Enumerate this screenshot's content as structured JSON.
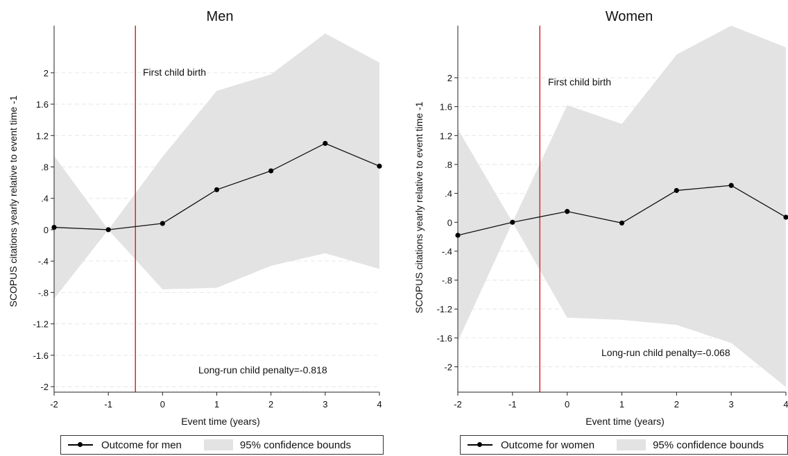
{
  "chart_data": [
    {
      "type": "line",
      "title": "Men",
      "xlabel": "Event time (years)",
      "ylabel": "SCOPUS citations yearly relative to event time -1",
      "x": [
        -2,
        -1,
        0,
        1,
        2,
        3,
        4
      ],
      "xticks": [
        "-2",
        "-1",
        "0",
        "1",
        "2",
        "3",
        "4"
      ],
      "yticks": [
        "2",
        "1.6",
        "1.2",
        ".8",
        ".4",
        "0",
        "-.4",
        "-.8",
        "-1.2",
        "-1.6",
        "-2"
      ],
      "ytick_values": [
        2,
        1.6,
        1.2,
        0.8,
        0.4,
        0,
        -0.4,
        -0.8,
        -1.2,
        -1.6,
        -2
      ],
      "xlim": [
        -2,
        4
      ],
      "ylim": [
        -2.07,
        2.6
      ],
      "series": [
        {
          "name": "Outcome for men",
          "values": [
            0.03,
            0.0,
            0.08,
            0.51,
            0.75,
            1.1,
            0.81
          ]
        }
      ],
      "ci_upper": [
        0.94,
        0.0,
        0.93,
        1.77,
        1.98,
        2.5,
        2.13
      ],
      "ci_lower": [
        -0.88,
        0.0,
        -0.76,
        -0.74,
        -0.46,
        -0.3,
        -0.5
      ],
      "ci_name": "95% confidence bounds",
      "event_line_x": -0.5,
      "event_label": "First child birth",
      "annotation": "Long-run child penalty=-0.818",
      "grid": true,
      "legend_position": "bottom"
    },
    {
      "type": "line",
      "title": "Women",
      "xlabel": "Event time (years)",
      "ylabel": "SCOPUS citations yearly relative to event time -1",
      "x": [
        -2,
        -1,
        0,
        1,
        2,
        3,
        4
      ],
      "xticks": [
        "-2",
        "-1",
        "0",
        "1",
        "2",
        "3",
        "4"
      ],
      "yticks": [
        "2",
        "1.6",
        "1.2",
        ".8",
        ".4",
        "0",
        "-.4",
        "-.8",
        "-1.2",
        "-1.6",
        "-2"
      ],
      "ytick_values": [
        2,
        1.6,
        1.2,
        0.8,
        0.4,
        0,
        -0.4,
        -0.8,
        -1.2,
        -1.6,
        -2
      ],
      "xlim": [
        -2,
        4
      ],
      "ylim": [
        -2.35,
        2.72
      ],
      "series": [
        {
          "name": "Outcome for women",
          "values": [
            -0.18,
            0.0,
            0.15,
            -0.01,
            0.44,
            0.51,
            0.07
          ]
        }
      ],
      "ci_upper": [
        1.29,
        0.0,
        1.62,
        1.36,
        2.32,
        2.72,
        2.42
      ],
      "ci_lower": [
        -1.65,
        0.0,
        -1.32,
        -1.35,
        -1.42,
        -1.67,
        -2.28
      ],
      "ci_name": "95% confidence bounds",
      "event_line_x": -0.5,
      "event_label": "First child birth",
      "annotation": "Long-run child penalty=-0.068",
      "grid": true,
      "legend_position": "bottom"
    }
  ]
}
